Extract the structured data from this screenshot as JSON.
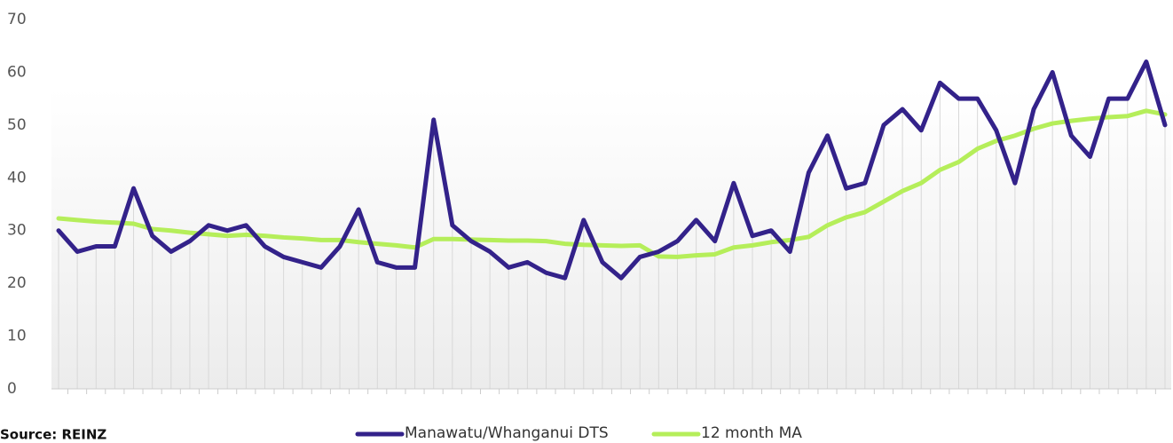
{
  "chart_data": {
    "type": "line",
    "source": "Source: REINZ",
    "categories": [
      null,
      null,
      null,
      null,
      null,
      null,
      null,
      null,
      null,
      null,
      null,
      null,
      null,
      null,
      null,
      null,
      null,
      null,
      null,
      null,
      null,
      null,
      null,
      null,
      null,
      null,
      null,
      null,
      null,
      null,
      null,
      null,
      null,
      null,
      null,
      null,
      null,
      null,
      null,
      null,
      null,
      null,
      null,
      null,
      null,
      null,
      null,
      null,
      null,
      null,
      null,
      null,
      null,
      null,
      null,
      null,
      null,
      null,
      null,
      null
    ],
    "series": [
      {
        "name": "Manawatu/Whanganui DTS",
        "color": "#33228a",
        "values": [
          30,
          26,
          27,
          27,
          38,
          29,
          26,
          28,
          31,
          30,
          31,
          27,
          25,
          24,
          23,
          27,
          34,
          24,
          23,
          23,
          51,
          31,
          28,
          26,
          23,
          24,
          22,
          21,
          32,
          24,
          21,
          25,
          26,
          28,
          32,
          28,
          39,
          29,
          30,
          26,
          41,
          48,
          38,
          39,
          50,
          53,
          49,
          58,
          55,
          55,
          49,
          39,
          53,
          60,
          48,
          44,
          55,
          55,
          62,
          50
        ]
      },
      {
        "name": "12 month MA",
        "color": "#b5ee5a",
        "values": [
          32.3,
          32,
          31.7,
          31.5,
          31.3,
          30.3,
          30,
          29.6,
          29.3,
          29,
          29.2,
          29,
          28.7,
          28.5,
          28.2,
          28.2,
          27.8,
          27.5,
          27.2,
          26.8,
          28.4,
          28.4,
          28.3,
          28.2,
          28.1,
          28.1,
          28,
          27.5,
          27.3,
          27.2,
          27.1,
          27.2,
          25.1,
          25,
          25.3,
          25.5,
          26.8,
          27.2,
          27.8,
          28.2,
          28.8,
          31,
          32.5,
          33.5,
          35.5,
          37.5,
          39,
          41.5,
          43,
          45.5,
          47,
          48,
          49.3,
          50.3,
          50.8,
          51.2,
          51.5,
          51.7,
          52.7,
          52
        ]
      }
    ],
    "ylim": [
      0,
      70
    ],
    "yticks": [
      0,
      10,
      20,
      30,
      40,
      50,
      60,
      70
    ],
    "grid": false,
    "legend": "bottom"
  }
}
